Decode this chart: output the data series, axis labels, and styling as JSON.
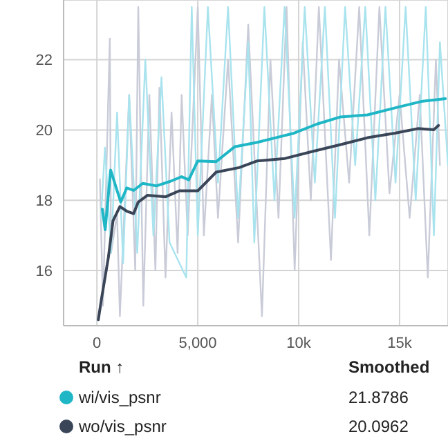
{
  "chart_data": {
    "type": "line",
    "legend_title": "Run ↑",
    "annotations": [
      "Smoothed",
      "21.8786",
      "20.0962"
    ],
    "xlim": [
      -1650,
      17400
    ],
    "ylim": [
      14.43,
      23.7
    ],
    "xticks": [
      {
        "value": 0,
        "label": "0"
      },
      {
        "value": 5000,
        "label": "5,000"
      },
      {
        "value": 10000,
        "label": "10k"
      },
      {
        "value": 15000,
        "label": "15k"
      }
    ],
    "yticks": [
      16,
      18,
      20,
      22
    ],
    "grid": true,
    "legend": "bottom",
    "marker": "none",
    "line_style": "solid",
    "series": [
      {
        "color": "#c9ccd8",
        "x": [
          150,
          300,
          640,
          700,
          1000,
          1140,
          1600,
          1900,
          2050,
          2300,
          2600,
          2900,
          3100,
          3400,
          3700,
          4000,
          4200,
          4500,
          5000,
          5300,
          5700,
          6000,
          6500,
          7000,
          7500,
          8180,
          8600,
          9000,
          9400,
          9800,
          10200,
          10600,
          11000,
          11600,
          12000,
          12500,
          13000,
          13500,
          14000,
          14500,
          15000,
          15500,
          16000,
          16400,
          16800,
          17000
        ],
        "values": [
          18.6,
          15.0,
          22.6,
          16.5,
          17.6,
          14.7,
          21,
          16,
          23.5,
          15.0,
          21,
          16.0,
          21.2,
          15.8,
          20.5,
          16.5,
          21,
          17,
          23.5,
          17,
          21,
          17.5,
          22,
          16.8,
          23,
          14.7,
          22,
          17.5,
          23.5,
          16,
          22.5,
          18,
          23.5,
          16.3,
          22,
          18.5,
          23.5,
          17,
          23.5,
          18.2,
          21,
          17.5,
          21,
          15.8,
          22,
          19
        ]
      },
      {
        "color": "#a9e3ee",
        "x": [
          200,
          400,
          700,
          1000,
          1300,
          1600,
          2000,
          2400,
          2800,
          3200,
          3600,
          4430,
          4700,
          5000,
          5500,
          6000,
          6500,
          7000,
          7500,
          7800,
          8300,
          8800,
          9300,
          9800,
          10300,
          10800,
          11300,
          11800,
          12300,
          12800,
          13300,
          13800,
          14300,
          14800,
          15300,
          15800,
          16300,
          16700,
          17000,
          17400
        ],
        "values": [
          17.5,
          19.5,
          16.5,
          20.5,
          16.2,
          21,
          16.5,
          22,
          17,
          21.5,
          16.8,
          15.8,
          23.5,
          17,
          23.5,
          18.5,
          23.5,
          17.5,
          22.5,
          16.8,
          23.5,
          18,
          23.5,
          17.5,
          23.5,
          18.5,
          23.5,
          17.5,
          23.5,
          19,
          23.5,
          18,
          23.5,
          18.5,
          23.5,
          18,
          23.5,
          17,
          22.5,
          19
        ]
      },
      {
        "name": "wi/vis_psnr",
        "color": "#1fb6c6",
        "x": [
          270,
          410,
          680,
          1180,
          1480,
          1820,
          2270,
          2950,
          3640,
          4200,
          4550,
          5000,
          5910,
          6820,
          7950,
          8860,
          9770,
          10910,
          12050,
          13410,
          14770,
          16140,
          17270
        ],
        "values": [
          17.75,
          17.16,
          18.86,
          17.95,
          18.35,
          18.28,
          18.48,
          18.41,
          18.54,
          18.67,
          18.58,
          19.12,
          19.1,
          19.52,
          19.65,
          19.78,
          19.91,
          20.17,
          20.37,
          20.43,
          20.63,
          20.82,
          20.89
        ]
      },
      {
        "name": "wo/vis_psnr",
        "color": "#3a4558",
        "x": [
          70,
          230,
          570,
          800,
          1140,
          1480,
          1820,
          2050,
          2500,
          3410,
          4090,
          5000,
          5910,
          7050,
          7950,
          9320,
          10680,
          12050,
          13410,
          14770,
          15910,
          16700,
          16930
        ],
        "values": [
          14.6,
          15.2,
          16.38,
          17.42,
          17.82,
          17.69,
          17.62,
          17.95,
          18.14,
          18.1,
          18.27,
          18.27,
          18.8,
          18.93,
          19.12,
          19.19,
          19.39,
          19.58,
          19.78,
          19.91,
          20.04,
          20.01,
          20.13
        ]
      }
    ]
  }
}
